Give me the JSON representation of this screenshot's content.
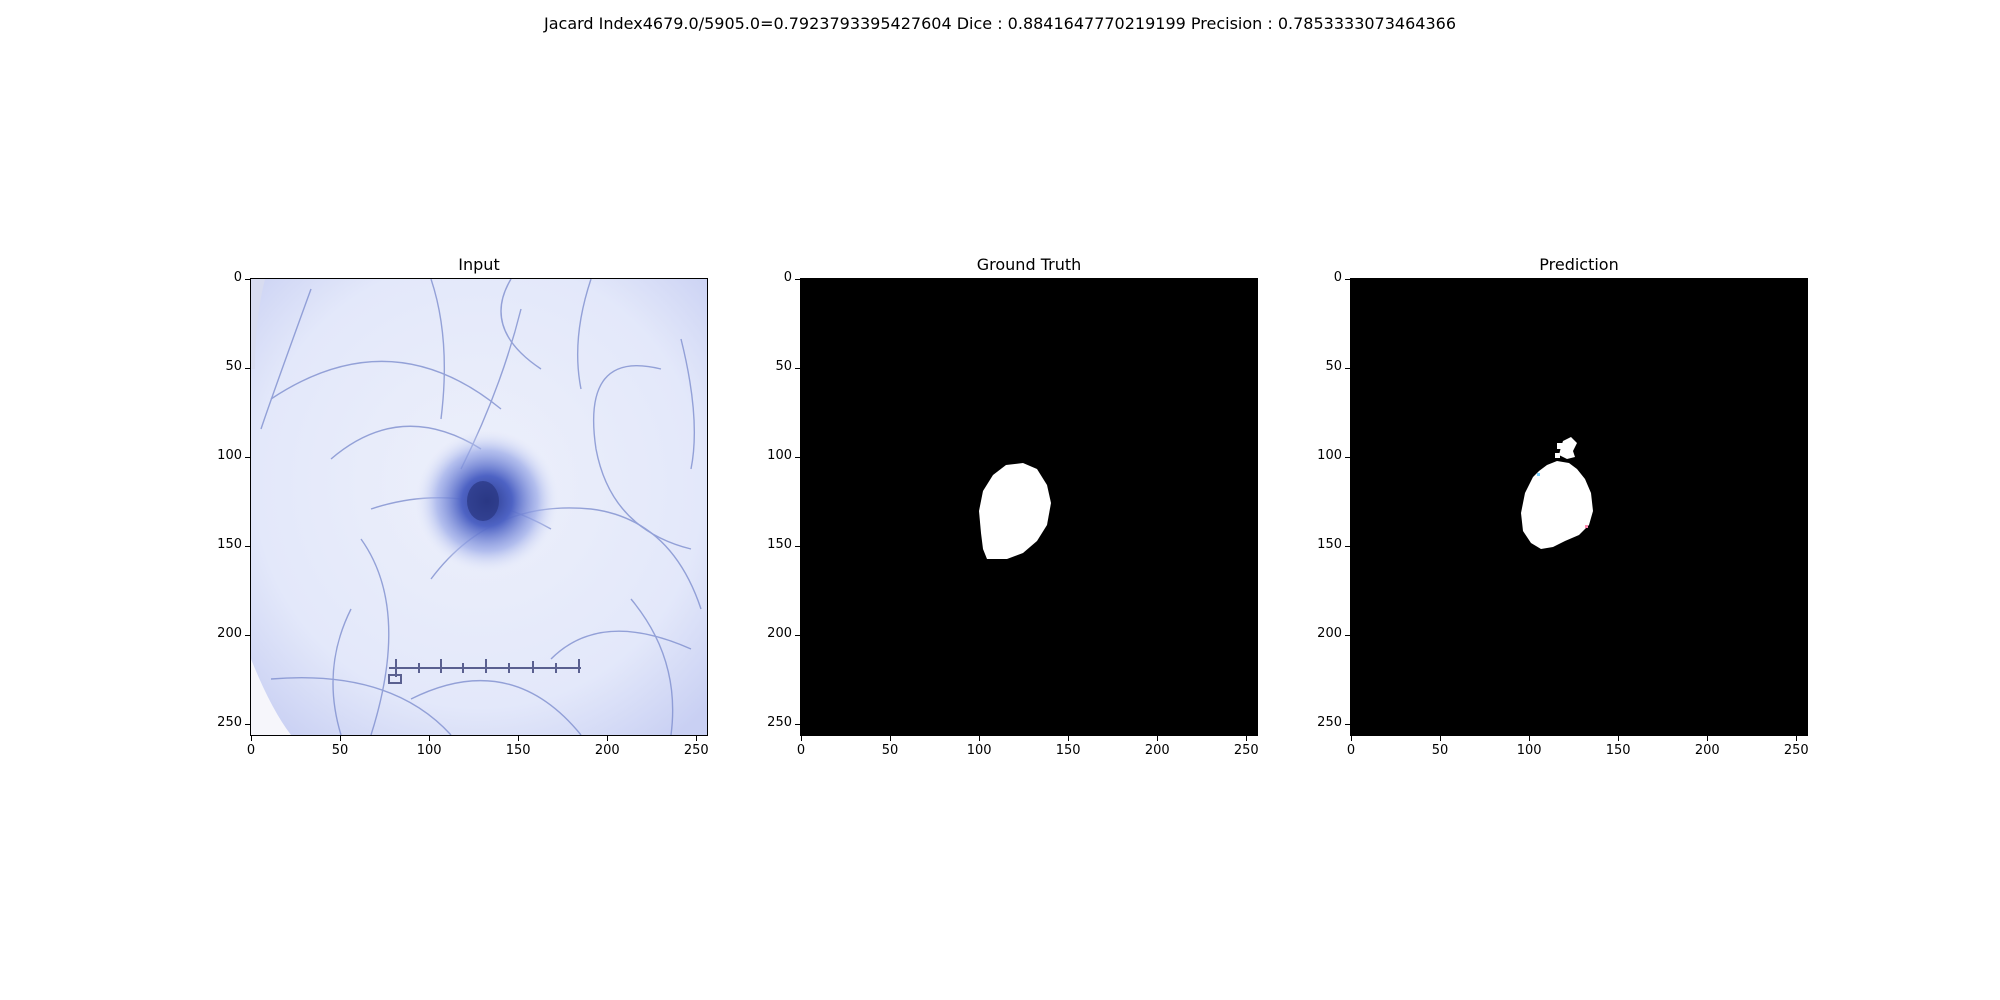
{
  "figure": {
    "suptitle": "Jacard Index4679.0/5905.0=0.7923793395427604 Dice : 0.8841647770219199 Precision : 0.7853333073464366"
  },
  "panels": [
    {
      "title": "Input",
      "image": "dermoscopy-lesion-image"
    },
    {
      "title": "Ground Truth",
      "image": "lesion-mask"
    },
    {
      "title": "Prediction",
      "image": "predicted-lesion-mask"
    }
  ],
  "axes": {
    "xticks": [
      "0",
      "50",
      "100",
      "150",
      "200",
      "250"
    ],
    "yticks": [
      "0",
      "50",
      "100",
      "150",
      "200",
      "250"
    ],
    "range": [
      0,
      256
    ]
  },
  "colors": {
    "mask_background": "#000000",
    "mask_foreground": "#ffffff",
    "skin": "#e6eafa",
    "lesion": "#3a4fa8"
  }
}
